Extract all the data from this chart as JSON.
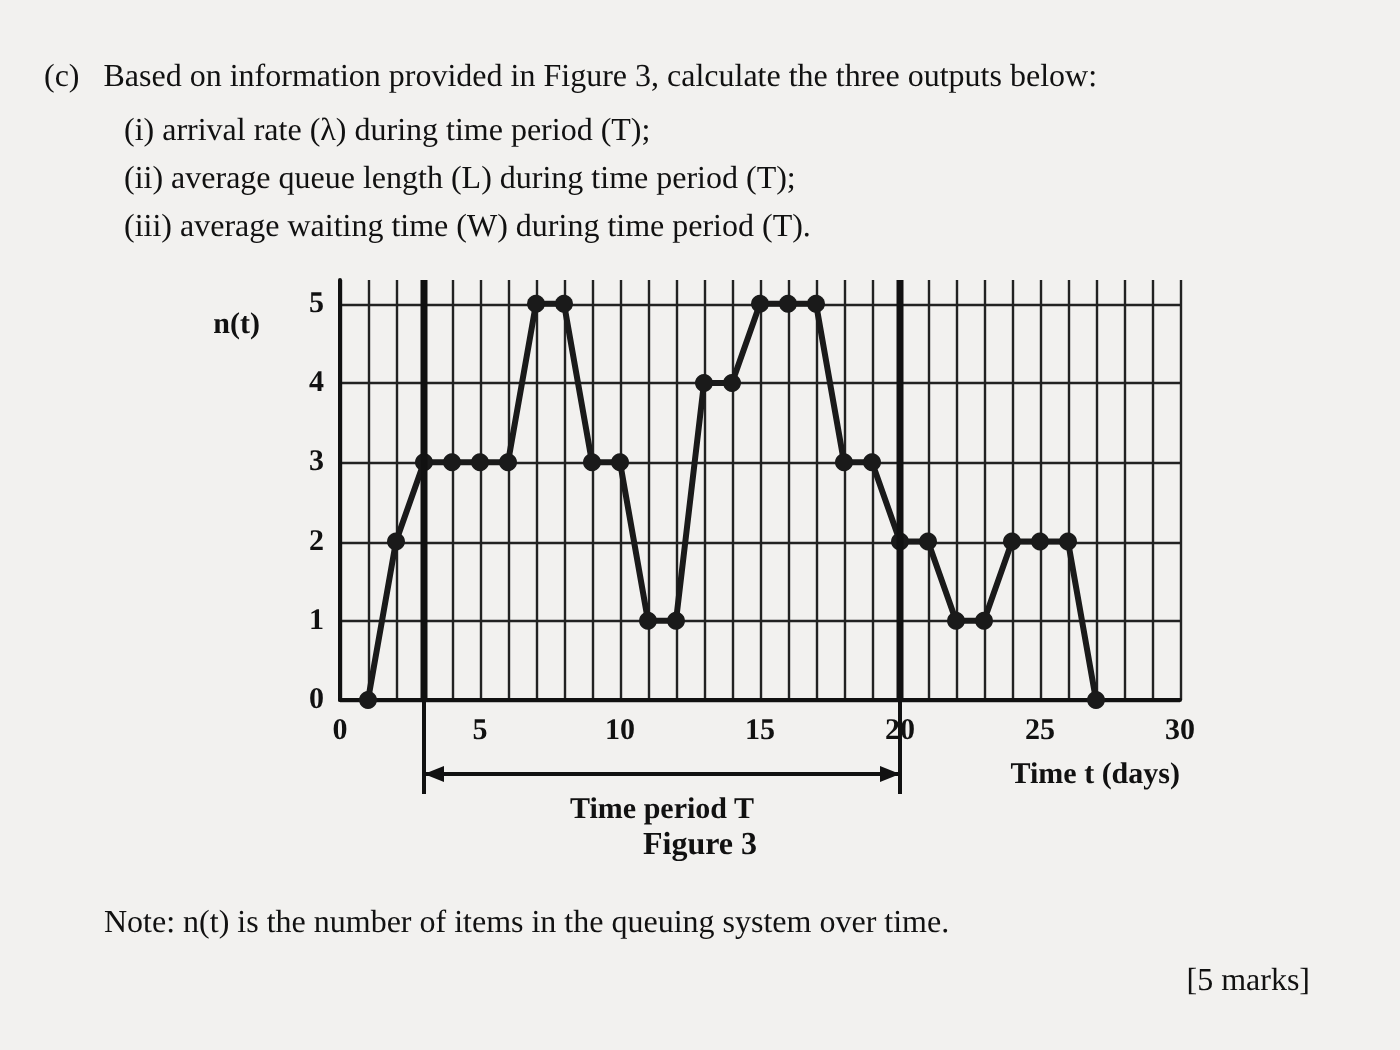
{
  "chart_data": {
    "type": "line",
    "title": "(c)   Based on information provided in Figure 3, calculate the three outputs below:",
    "subtitle": "(i) arrival rate (λ) during time period (T);\n(ii) average queue length (L) during time period (T);\n(iii) average waiting time (W) during time period (T).",
    "xlabel": "Time t (days)",
    "ylabel": "n(t)",
    "x": [
      1,
      2,
      3,
      4,
      5,
      6,
      7,
      8,
      9,
      10,
      11,
      12,
      13,
      14,
      15,
      16,
      17,
      18,
      19,
      20,
      21,
      22,
      23,
      24,
      25,
      26,
      27
    ],
    "series": [
      {
        "color": "#1a1a1a",
        "values": [
          0,
          2,
          3,
          3,
          3,
          3,
          5,
          5,
          3,
          3,
          1,
          1,
          4,
          4,
          5,
          5,
          5,
          3,
          3,
          2,
          2,
          1,
          1,
          2,
          2,
          2,
          0
        ]
      }
    ],
    "xlim": [
      0,
      30
    ],
    "xticks": [
      0,
      {
        "value": 1,
        "label": null
      },
      {
        "value": 2,
        "label": null
      },
      {
        "value": 4,
        "label": null
      },
      5,
      {
        "value": 6,
        "label": null
      },
      {
        "value": 7,
        "label": null
      },
      {
        "value": 8,
        "label": null
      },
      {
        "value": 9,
        "label": null
      },
      10,
      {
        "value": 11,
        "label": null
      },
      {
        "value": 12,
        "label": null
      },
      {
        "value": 13,
        "label": null
      },
      {
        "value": 14,
        "label": null
      },
      15,
      {
        "value": 16,
        "label": null
      },
      {
        "value": 17,
        "label": null
      },
      {
        "value": 18,
        "label": null
      },
      {
        "value": 19,
        "label": null
      },
      20,
      {
        "value": 21,
        "label": null
      },
      {
        "value": 22,
        "label": null
      },
      {
        "value": 23,
        "label": null
      },
      {
        "value": 24,
        "label": null
      },
      25,
      {
        "value": 26,
        "label": null
      },
      {
        "value": 27,
        "label": null
      },
      {
        "value": 28,
        "label": null
      },
      {
        "value": 29,
        "label": null
      },
      30
    ],
    "ylim": [
      0,
      5.3
    ],
    "yticks": [
      0,
      1,
      2,
      3,
      4,
      5
    ],
    "ref_lines": [
      {
        "axis": "x",
        "value": 3
      },
      {
        "axis": "x",
        "value": 20
      }
    ],
    "annotations": [
      "Time period T",
      "Figure 3",
      "Note: n(t) is the number of items in the queuing system over time.",
      "[5 marks]"
    ],
    "grid": true,
    "marker": "circle",
    "line_style": "solid"
  }
}
